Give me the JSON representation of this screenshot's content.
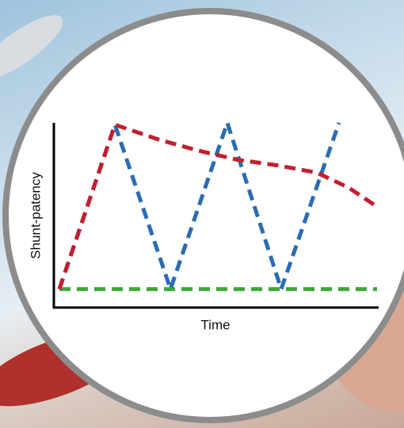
{
  "chart_data": {
    "type": "line",
    "x_label": "Time",
    "y_label": "Shunt-patency",
    "xlim": [
      0,
      10
    ],
    "ylim": [
      0,
      10
    ],
    "grid": false,
    "series": [
      {
        "color": "#c41e2e",
        "x": [
          0.17,
          1.88,
          3.22,
          4.44,
          5.66,
          6.88,
          8.1,
          9.07,
          10
        ],
        "values": [
          1,
          9.9,
          9.1,
          8.5,
          8.0,
          7.7,
          7.3,
          6.5,
          5.4
        ]
      },
      {
        "color": "#2b6cb3",
        "x": [
          0.17,
          1.88,
          3.59,
          5.34,
          7.0,
          8.78
        ],
        "values": [
          1,
          9.9,
          1,
          10,
          1,
          10
        ]
      },
      {
        "color": "#3aa935",
        "x": [
          0.17,
          9.95
        ],
        "values": [
          1,
          1
        ]
      }
    ]
  }
}
